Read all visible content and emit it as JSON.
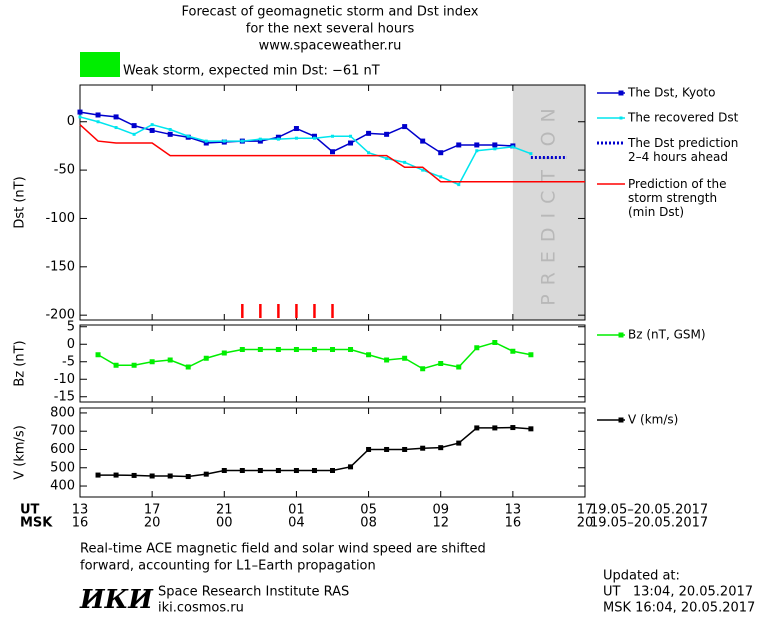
{
  "title_lines": [
    "Forecast of geomagnetic storm and Dst index",
    "for the next several hours",
    "www.spaceweather.ru"
  ],
  "storm_box": {
    "color": "#00ee00",
    "label": "Weak storm, expected min Dst: −61 nT"
  },
  "prediction_label": "PREDICTION",
  "x_axis": {
    "ut_label": "UT",
    "msk_label": "MSK",
    "ut_date": "19.05–20.05.2017",
    "msk_date": "19.05–20.05.2017",
    "ut_ticks": [
      {
        "value": 0,
        "label": "13"
      },
      {
        "value": 4,
        "label": "17"
      },
      {
        "value": 8,
        "label": "21"
      },
      {
        "value": 12,
        "label": "01"
      },
      {
        "value": 16,
        "label": "05"
      },
      {
        "value": 20,
        "label": "09"
      },
      {
        "value": 24,
        "label": "13"
      },
      {
        "value": 28,
        "label": "17"
      }
    ],
    "msk_ticks": [
      {
        "value": 0,
        "label": "16"
      },
      {
        "value": 4,
        "label": "20"
      },
      {
        "value": 8,
        "label": "00"
      },
      {
        "value": 12,
        "label": "04"
      },
      {
        "value": 16,
        "label": "08"
      },
      {
        "value": 20,
        "label": "12"
      },
      {
        "value": 24,
        "label": "16"
      },
      {
        "value": 28,
        "label": "20"
      }
    ]
  },
  "chart_data": [
    {
      "type": "line",
      "ylabel": "Dst (nT)",
      "xlim": [
        0,
        28
      ],
      "ylim": [
        -205,
        38
      ],
      "yticks": [
        0,
        -50,
        -100,
        -150,
        -200
      ],
      "prediction_start": 24,
      "storm_marks_color": "#ff0000",
      "storm_marks_x": [
        9,
        10,
        11,
        12,
        13,
        14
      ],
      "series": [
        {
          "name": "The Dst, Kyoto",
          "color": "#0000cc",
          "marker": 5,
          "x": [
            0,
            1,
            2,
            3,
            4,
            5,
            6,
            7,
            8,
            9,
            10,
            11,
            12,
            13,
            14,
            15,
            16,
            17,
            18,
            19,
            20,
            21,
            22,
            23,
            24
          ],
          "values": [
            10,
            7,
            5,
            -4,
            -9,
            -13,
            -16,
            -22,
            -21,
            -20,
            -20,
            -16,
            -7,
            -15,
            -31,
            -22,
            -12,
            -13,
            -5,
            -20,
            -32,
            -24,
            -24,
            -24,
            -25
          ]
        },
        {
          "name": "The recovered Dst",
          "color": "#00e5ee",
          "marker": 3,
          "x": [
            0,
            1,
            2,
            3,
            4,
            5,
            6,
            7,
            8,
            9,
            10,
            11,
            12,
            13,
            14,
            15,
            16,
            17,
            18,
            19,
            20,
            21,
            22,
            23,
            24,
            25
          ],
          "values": [
            5,
            0,
            -6,
            -13,
            -3,
            -8,
            -15,
            -20,
            -20,
            -20,
            -18,
            -18,
            -17,
            -17,
            -15,
            -15,
            -32,
            -38,
            -42,
            -50,
            -57,
            -65,
            -30,
            -28,
            -26,
            -33
          ]
        },
        {
          "name": "The Dst prediction\n2–4 hours ahead",
          "color": "#0000cc",
          "marker": 0,
          "dotted": true,
          "x": [
            25,
            26,
            27
          ],
          "values": [
            -37,
            -37,
            -37
          ]
        },
        {
          "name": "Prediction of the\nstorm strength\n(min Dst)",
          "color": "#ff0000",
          "marker": 0,
          "x": [
            0,
            1,
            2,
            4,
            5,
            17,
            18,
            19,
            20,
            28
          ],
          "values": [
            -3,
            -20,
            -22,
            -22,
            -35,
            -35,
            -47,
            -47,
            -62,
            -62
          ]
        }
      ]
    },
    {
      "type": "line",
      "ylabel": "Bz (nT)",
      "xlim": [
        0,
        28
      ],
      "ylim": [
        -16.5,
        5.5
      ],
      "yticks": [
        5,
        0,
        -5,
        -10,
        -15
      ],
      "series": [
        {
          "name": "Bz (nT, GSM)",
          "color": "#00ee00",
          "marker": 5,
          "x": [
            1,
            2,
            3,
            4,
            5,
            6,
            7,
            8,
            9,
            10,
            11,
            12,
            13,
            14,
            15,
            16,
            17,
            18,
            19,
            20,
            21,
            22,
            23,
            24,
            25
          ],
          "values": [
            -3,
            -6,
            -6,
            -5,
            -4.5,
            -6.5,
            -4,
            -2.5,
            -1.5,
            -1.5,
            -1.5,
            -1.5,
            -1.5,
            -1.5,
            -1.5,
            -3,
            -4.5,
            -4,
            -7,
            -5.5,
            -6.5,
            -1,
            0.5,
            -2,
            -3
          ]
        }
      ]
    },
    {
      "type": "line",
      "ylabel": "V (km/s)",
      "xlim": [
        0,
        28
      ],
      "ylim": [
        340,
        827
      ],
      "yticks": [
        800,
        700,
        600,
        500,
        400
      ],
      "series": [
        {
          "name": "V (km/s)",
          "color": "#000000",
          "marker": 5,
          "x": [
            1,
            2,
            3,
            4,
            5,
            6,
            7,
            8,
            9,
            10,
            11,
            12,
            13,
            14,
            15,
            16,
            17,
            18,
            19,
            20,
            21,
            22,
            23,
            24,
            25
          ],
          "values": [
            460,
            460,
            458,
            455,
            455,
            452,
            465,
            485,
            485,
            485,
            485,
            485,
            485,
            485,
            505,
            600,
            600,
            600,
            607,
            610,
            635,
            718,
            718,
            720,
            713
          ]
        }
      ]
    }
  ],
  "footer": {
    "note_lines": [
      "Real-time ACE magnetic field and solar wind speed are shifted",
      "forward, accounting for L1–Earth propagation"
    ],
    "logo": "ИКИ",
    "institute": "Space Research Institute RAS",
    "site": "iki.cosmos.ru",
    "updated_lines": [
      "Updated at:",
      "UT   13:04, 20.05.2017",
      "MSK 16:04, 20.05.2017"
    ]
  }
}
